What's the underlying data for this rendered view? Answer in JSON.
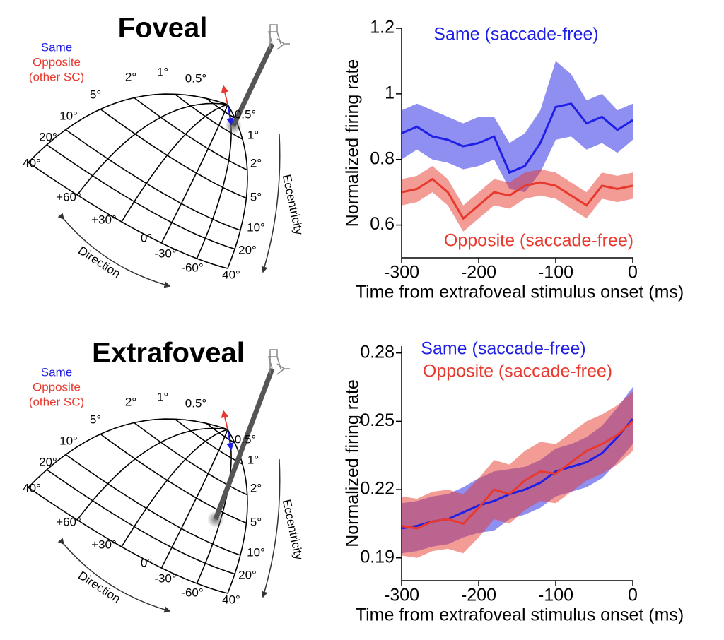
{
  "diagrams": [
    {
      "title": "Foveal",
      "legend": [
        "Same",
        "Opposite",
        "(other SC)"
      ],
      "top_labels": [
        "2°",
        "1°",
        "0.5°"
      ],
      "left_labels": [
        "5°",
        "10°",
        "20°",
        "40°"
      ],
      "right_labels": [
        "0.5°",
        "1°",
        "2°",
        "5°",
        "10°",
        "20°",
        "40°"
      ],
      "direction_labels": [
        "+60°",
        "+30°",
        "0°",
        "-30°",
        "-60°"
      ],
      "direction": "Direction",
      "eccentricity": "Eccentricity"
    },
    {
      "title": "Extrafoveal",
      "legend": [
        "Same",
        "Opposite",
        "(other SC)"
      ],
      "top_labels": [
        "2°",
        "1°",
        "0.5°"
      ],
      "left_labels": [
        "5°",
        "10°",
        "20°",
        "40°"
      ],
      "right_labels": [
        "0.5°",
        "1°",
        "2°",
        "5°",
        "10°",
        "20°",
        "40°"
      ],
      "direction_labels": [
        "+60°",
        "+30°",
        "0°",
        "-30°",
        "-60°"
      ],
      "direction": "Direction",
      "eccentricity": "Eccentricity"
    }
  ],
  "chart_data": [
    {
      "type": "line",
      "x_label": "Time from extrafoveal stimulus onset (ms)",
      "y_label": "Normalized firing rate",
      "x": [
        -300,
        -280,
        -260,
        -240,
        -220,
        -200,
        -180,
        -160,
        -140,
        -120,
        -100,
        -80,
        -60,
        -40,
        -20,
        0
      ],
      "xlim": [
        -300,
        0
      ],
      "xticks": [
        -300,
        -200,
        -100,
        0
      ],
      "ylim": [
        0.5,
        1.2
      ],
      "yticks": [
        0.6,
        0.8,
        1,
        1.2
      ],
      "series": [
        {
          "name": "Same (saccade-free)",
          "color": "#1f1fe6",
          "values": [
            0.88,
            0.9,
            0.87,
            0.86,
            0.84,
            0.85,
            0.87,
            0.76,
            0.78,
            0.85,
            0.96,
            0.97,
            0.91,
            0.93,
            0.89,
            0.92
          ],
          "upper": [
            0.95,
            0.97,
            0.95,
            0.93,
            0.91,
            0.93,
            0.93,
            0.85,
            0.88,
            0.95,
            1.1,
            1.06,
            0.98,
            1.0,
            0.95,
            0.97
          ],
          "lower": [
            0.8,
            0.83,
            0.8,
            0.79,
            0.77,
            0.78,
            0.8,
            0.71,
            0.7,
            0.76,
            0.86,
            0.87,
            0.83,
            0.85,
            0.82,
            0.86
          ]
        },
        {
          "name": "Opposite (saccade-free)",
          "color": "#e8392e",
          "values": [
            0.7,
            0.71,
            0.74,
            0.7,
            0.62,
            0.66,
            0.7,
            0.69,
            0.72,
            0.73,
            0.72,
            0.69,
            0.66,
            0.72,
            0.71,
            0.72
          ],
          "upper": [
            0.74,
            0.75,
            0.78,
            0.74,
            0.66,
            0.7,
            0.74,
            0.73,
            0.76,
            0.77,
            0.76,
            0.73,
            0.7,
            0.76,
            0.75,
            0.76
          ],
          "lower": [
            0.66,
            0.67,
            0.7,
            0.66,
            0.58,
            0.62,
            0.66,
            0.65,
            0.68,
            0.69,
            0.68,
            0.65,
            0.62,
            0.68,
            0.67,
            0.68
          ]
        }
      ]
    },
    {
      "type": "line",
      "x_label": "Time from extrafoveal stimulus onset (ms)",
      "y_label": "Normalized firing rate",
      "x": [
        -300,
        -280,
        -260,
        -240,
        -220,
        -200,
        -180,
        -160,
        -140,
        -120,
        -100,
        -80,
        -60,
        -40,
        -20,
        0
      ],
      "xlim": [
        -300,
        0
      ],
      "xticks": [
        -300,
        -200,
        -100,
        0
      ],
      "ylim": [
        0.18,
        0.283
      ],
      "yticks": [
        0.19,
        0.22,
        0.25,
        0.28
      ],
      "series": [
        {
          "name": "Same (saccade-free)",
          "color": "#1f1fe6",
          "values": [
            0.203,
            0.204,
            0.206,
            0.207,
            0.21,
            0.213,
            0.215,
            0.218,
            0.22,
            0.223,
            0.228,
            0.23,
            0.232,
            0.236,
            0.243,
            0.251
          ],
          "upper": [
            0.214,
            0.215,
            0.217,
            0.218,
            0.221,
            0.225,
            0.228,
            0.229,
            0.23,
            0.233,
            0.238,
            0.24,
            0.243,
            0.248,
            0.256,
            0.265
          ],
          "lower": [
            0.192,
            0.193,
            0.195,
            0.196,
            0.199,
            0.201,
            0.202,
            0.207,
            0.209,
            0.212,
            0.217,
            0.219,
            0.221,
            0.225,
            0.232,
            0.24
          ]
        },
        {
          "name": "Opposite (saccade-free)",
          "color": "#e8392e",
          "values": [
            0.204,
            0.203,
            0.206,
            0.207,
            0.205,
            0.212,
            0.22,
            0.218,
            0.224,
            0.228,
            0.227,
            0.232,
            0.237,
            0.24,
            0.244,
            0.25
          ],
          "upper": [
            0.217,
            0.216,
            0.219,
            0.22,
            0.218,
            0.225,
            0.233,
            0.231,
            0.237,
            0.241,
            0.24,
            0.245,
            0.25,
            0.253,
            0.257,
            0.263
          ],
          "lower": [
            0.191,
            0.19,
            0.193,
            0.194,
            0.192,
            0.199,
            0.207,
            0.205,
            0.211,
            0.215,
            0.214,
            0.219,
            0.224,
            0.227,
            0.231,
            0.237
          ]
        }
      ]
    }
  ]
}
